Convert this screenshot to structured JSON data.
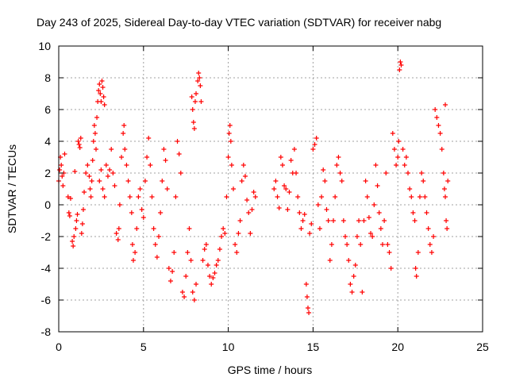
{
  "chart_data": {
    "type": "scatter",
    "title": "Day 243 of 2025, Sidereal Day-to-day VTEC variation (SDTVAR) for receiver nabg",
    "xlabel": "GPS time / hours",
    "ylabel": "SDTVAR / TECUs",
    "xlim": [
      0,
      25
    ],
    "ylim": [
      -8,
      10
    ],
    "x_ticks": [
      0,
      5,
      10,
      15,
      20,
      25
    ],
    "y_ticks": [
      -8,
      -6,
      -4,
      -2,
      0,
      2,
      4,
      6,
      8,
      10
    ],
    "x_tick_labels": [
      "0",
      "5",
      "10",
      "15",
      "20",
      "25"
    ],
    "y_tick_labels": [
      "-8",
      "-6",
      "-4",
      "-2",
      "0",
      "2",
      "4",
      "6",
      "8",
      "10"
    ],
    "grid": true,
    "marker": "plus",
    "series": [
      {
        "name": "SDTVAR",
        "color": "#ff0000",
        "points": [
          [
            0.0,
            1.5
          ],
          [
            0.05,
            2.2
          ],
          [
            0.1,
            3.0
          ],
          [
            0.15,
            2.5
          ],
          [
            0.2,
            1.8
          ],
          [
            0.25,
            1.2
          ],
          [
            0.3,
            2.0
          ],
          [
            0.35,
            3.2
          ],
          [
            0.55,
            0.5
          ],
          [
            0.6,
            -0.5
          ],
          [
            0.65,
            -0.7
          ],
          [
            0.7,
            0.4
          ],
          [
            0.8,
            -2.3
          ],
          [
            0.85,
            -2.6
          ],
          [
            0.9,
            -2.0
          ],
          [
            0.95,
            2.1
          ],
          [
            1.0,
            -1.5
          ],
          [
            1.05,
            -1.0
          ],
          [
            1.1,
            -0.6
          ],
          [
            1.15,
            4.0
          ],
          [
            1.2,
            3.8
          ],
          [
            1.25,
            3.6
          ],
          [
            1.3,
            4.2
          ],
          [
            1.35,
            -1.8
          ],
          [
            1.4,
            -1.2
          ],
          [
            1.45,
            -0.3
          ],
          [
            1.5,
            0.8
          ],
          [
            1.6,
            2.0
          ],
          [
            1.7,
            2.5
          ],
          [
            1.8,
            1.8
          ],
          [
            1.85,
            1.0
          ],
          [
            1.9,
            0.5
          ],
          [
            1.95,
            1.5
          ],
          [
            2.0,
            2.8
          ],
          [
            2.05,
            4.0
          ],
          [
            2.1,
            5.0
          ],
          [
            2.15,
            4.5
          ],
          [
            2.2,
            3.5
          ],
          [
            2.25,
            5.5
          ],
          [
            2.3,
            6.5
          ],
          [
            2.35,
            7.2
          ],
          [
            2.4,
            7.6
          ],
          [
            2.45,
            7.0
          ],
          [
            2.5,
            6.5
          ],
          [
            2.55,
            7.8
          ],
          [
            2.6,
            7.4
          ],
          [
            2.65,
            6.8
          ],
          [
            2.7,
            6.3
          ],
          [
            2.4,
            1.5
          ],
          [
            2.5,
            2.2
          ],
          [
            2.6,
            1.0
          ],
          [
            2.7,
            0.5
          ],
          [
            2.8,
            2.5
          ],
          [
            2.9,
            1.8
          ],
          [
            3.0,
            2.2
          ],
          [
            3.1,
            3.5
          ],
          [
            3.2,
            2.0
          ],
          [
            3.3,
            1.2
          ],
          [
            3.4,
            -1.8
          ],
          [
            3.5,
            -2.2
          ],
          [
            3.55,
            -1.5
          ],
          [
            3.6,
            0.0
          ],
          [
            3.7,
            3.0
          ],
          [
            3.8,
            4.5
          ],
          [
            3.85,
            5.0
          ],
          [
            3.9,
            3.5
          ],
          [
            4.0,
            2.5
          ],
          [
            4.1,
            1.5
          ],
          [
            4.2,
            0.5
          ],
          [
            4.3,
            -0.5
          ],
          [
            4.35,
            -2.5
          ],
          [
            4.4,
            -3.5
          ],
          [
            4.5,
            -3.0
          ],
          [
            4.6,
            -1.5
          ],
          [
            4.7,
            0.5
          ],
          [
            4.8,
            1.0
          ],
          [
            4.9,
            -0.3
          ],
          [
            5.0,
            -0.8
          ],
          [
            5.1,
            1.5
          ],
          [
            5.2,
            3.0
          ],
          [
            5.3,
            4.2
          ],
          [
            5.4,
            2.5
          ],
          [
            5.5,
            0.5
          ],
          [
            5.6,
            -1.5
          ],
          [
            5.7,
            -2.5
          ],
          [
            5.8,
            -3.3
          ],
          [
            5.9,
            -2.0
          ],
          [
            6.0,
            -0.5
          ],
          [
            6.1,
            1.5
          ],
          [
            6.2,
            3.5
          ],
          [
            6.3,
            2.8
          ],
          [
            6.4,
            1.0
          ],
          [
            6.5,
            -4.0
          ],
          [
            6.6,
            -4.8
          ],
          [
            6.7,
            -4.2
          ],
          [
            6.8,
            -3.0
          ],
          [
            6.9,
            0.5
          ],
          [
            7.0,
            4.0
          ],
          [
            7.1,
            3.2
          ],
          [
            7.2,
            2.0
          ],
          [
            7.3,
            -5.5
          ],
          [
            7.4,
            -5.8
          ],
          [
            7.5,
            -4.5
          ],
          [
            7.6,
            -3.0
          ],
          [
            7.7,
            -1.5
          ],
          [
            7.8,
            -3.5
          ],
          [
            7.9,
            -5.5
          ],
          [
            8.0,
            -6.0
          ],
          [
            8.1,
            -5.0
          ],
          [
            7.85,
            6.8
          ],
          [
            7.9,
            6.0
          ],
          [
            7.95,
            5.2
          ],
          [
            8.0,
            4.8
          ],
          [
            8.05,
            6.5
          ],
          [
            8.1,
            7.0
          ],
          [
            8.2,
            7.8
          ],
          [
            8.25,
            8.3
          ],
          [
            8.3,
            8.0
          ],
          [
            8.35,
            7.5
          ],
          [
            8.4,
            6.5
          ],
          [
            8.5,
            -3.5
          ],
          [
            8.6,
            -2.8
          ],
          [
            8.7,
            -2.5
          ],
          [
            8.8,
            -3.8
          ],
          [
            8.9,
            -4.5
          ],
          [
            9.0,
            -5.0
          ],
          [
            9.1,
            -4.6
          ],
          [
            9.2,
            -4.3
          ],
          [
            9.3,
            -3.8
          ],
          [
            9.4,
            -3.5
          ],
          [
            9.5,
            -2.8
          ],
          [
            9.6,
            -2.0
          ],
          [
            9.7,
            -1.5
          ],
          [
            9.8,
            -1.8
          ],
          [
            9.9,
            0.5
          ],
          [
            10.0,
            3.0
          ],
          [
            10.05,
            4.5
          ],
          [
            10.1,
            5.0
          ],
          [
            10.15,
            4.0
          ],
          [
            10.2,
            2.5
          ],
          [
            10.3,
            1.0
          ],
          [
            10.4,
            -2.5
          ],
          [
            10.5,
            -3.0
          ],
          [
            10.6,
            -1.8
          ],
          [
            10.7,
            -1.0
          ],
          [
            10.8,
            1.5
          ],
          [
            10.9,
            2.5
          ],
          [
            11.0,
            1.8
          ],
          [
            11.1,
            0.3
          ],
          [
            11.2,
            -0.5
          ],
          [
            11.3,
            -1.8
          ],
          [
            11.4,
            -0.3
          ],
          [
            11.5,
            0.8
          ],
          [
            11.6,
            0.5
          ],
          [
            12.7,
            1.0
          ],
          [
            12.8,
            1.5
          ],
          [
            12.9,
            0.5
          ],
          [
            13.0,
            -0.2
          ],
          [
            13.1,
            3.0
          ],
          [
            13.2,
            2.5
          ],
          [
            13.3,
            1.2
          ],
          [
            13.4,
            1.0
          ],
          [
            13.5,
            -0.3
          ],
          [
            13.6,
            0.8
          ],
          [
            13.7,
            2.8
          ],
          [
            13.8,
            2.0
          ],
          [
            13.9,
            3.5
          ],
          [
            14.0,
            2.0
          ],
          [
            14.1,
            0.5
          ],
          [
            14.2,
            -0.5
          ],
          [
            14.3,
            -1.5
          ],
          [
            14.4,
            -1.0
          ],
          [
            14.5,
            -0.6
          ],
          [
            14.6,
            -5.0
          ],
          [
            14.65,
            -5.8
          ],
          [
            14.7,
            -6.5
          ],
          [
            14.75,
            -6.8
          ],
          [
            14.8,
            -1.8
          ],
          [
            14.9,
            -1.2
          ],
          [
            15.0,
            3.5
          ],
          [
            15.1,
            3.8
          ],
          [
            15.2,
            4.2
          ],
          [
            15.3,
            0.0
          ],
          [
            15.4,
            -1.5
          ],
          [
            15.5,
            0.5
          ],
          [
            15.6,
            2.2
          ],
          [
            15.7,
            1.5
          ],
          [
            15.8,
            -0.3
          ],
          [
            15.9,
            -1.0
          ],
          [
            16.0,
            -3.5
          ],
          [
            16.1,
            -2.5
          ],
          [
            16.2,
            -1.0
          ],
          [
            16.3,
            0.5
          ],
          [
            16.4,
            2.5
          ],
          [
            16.5,
            3.0
          ],
          [
            16.6,
            2.0
          ],
          [
            16.7,
            1.5
          ],
          [
            16.8,
            -1.0
          ],
          [
            16.9,
            -2.0
          ],
          [
            17.0,
            -2.5
          ],
          [
            17.1,
            -3.5
          ],
          [
            17.2,
            -5.0
          ],
          [
            17.3,
            -5.5
          ],
          [
            17.4,
            -4.5
          ],
          [
            17.5,
            -3.8
          ],
          [
            17.6,
            -2.0
          ],
          [
            17.7,
            -1.0
          ],
          [
            17.8,
            -2.5
          ],
          [
            17.9,
            -5.5
          ],
          [
            18.0,
            -1.0
          ],
          [
            18.1,
            1.5
          ],
          [
            18.2,
            0.5
          ],
          [
            18.3,
            -0.8
          ],
          [
            18.4,
            -1.8
          ],
          [
            18.5,
            -2.0
          ],
          [
            18.6,
            0.0
          ],
          [
            18.7,
            2.5
          ],
          [
            18.8,
            1.2
          ],
          [
            18.9,
            -0.5
          ],
          [
            19.0,
            -1.5
          ],
          [
            19.1,
            -2.5
          ],
          [
            19.2,
            -1.0
          ],
          [
            19.3,
            2.0
          ],
          [
            19.4,
            -2.5
          ],
          [
            19.5,
            -3.0
          ],
          [
            19.6,
            -4.0
          ],
          [
            19.7,
            4.5
          ],
          [
            19.8,
            3.5
          ],
          [
            19.9,
            2.5
          ],
          [
            20.0,
            3.0
          ],
          [
            20.05,
            4.0
          ],
          [
            20.1,
            8.5
          ],
          [
            20.15,
            9.0
          ],
          [
            20.2,
            8.8
          ],
          [
            20.3,
            3.5
          ],
          [
            20.4,
            2.5
          ],
          [
            20.5,
            3.0
          ],
          [
            20.6,
            2.0
          ],
          [
            20.7,
            1.0
          ],
          [
            20.8,
            0.5
          ],
          [
            20.9,
            -0.5
          ],
          [
            21.0,
            -1.0
          ],
          [
            21.05,
            -4.0
          ],
          [
            21.1,
            -4.5
          ],
          [
            21.2,
            -3.0
          ],
          [
            21.3,
            0.5
          ],
          [
            21.4,
            2.0
          ],
          [
            21.5,
            1.5
          ],
          [
            21.6,
            0.5
          ],
          [
            21.7,
            -0.5
          ],
          [
            21.8,
            -1.5
          ],
          [
            21.9,
            -2.5
          ],
          [
            22.0,
            -3.0
          ],
          [
            22.1,
            -2.0
          ],
          [
            22.2,
            6.0
          ],
          [
            22.3,
            5.5
          ],
          [
            22.4,
            5.0
          ],
          [
            22.5,
            4.5
          ],
          [
            22.6,
            3.5
          ],
          [
            22.7,
            2.0
          ],
          [
            22.75,
            1.0
          ],
          [
            22.8,
            0.5
          ],
          [
            22.85,
            -1.0
          ],
          [
            22.9,
            -1.5
          ],
          [
            22.95,
            1.5
          ],
          [
            22.8,
            6.3
          ]
        ]
      }
    ]
  }
}
